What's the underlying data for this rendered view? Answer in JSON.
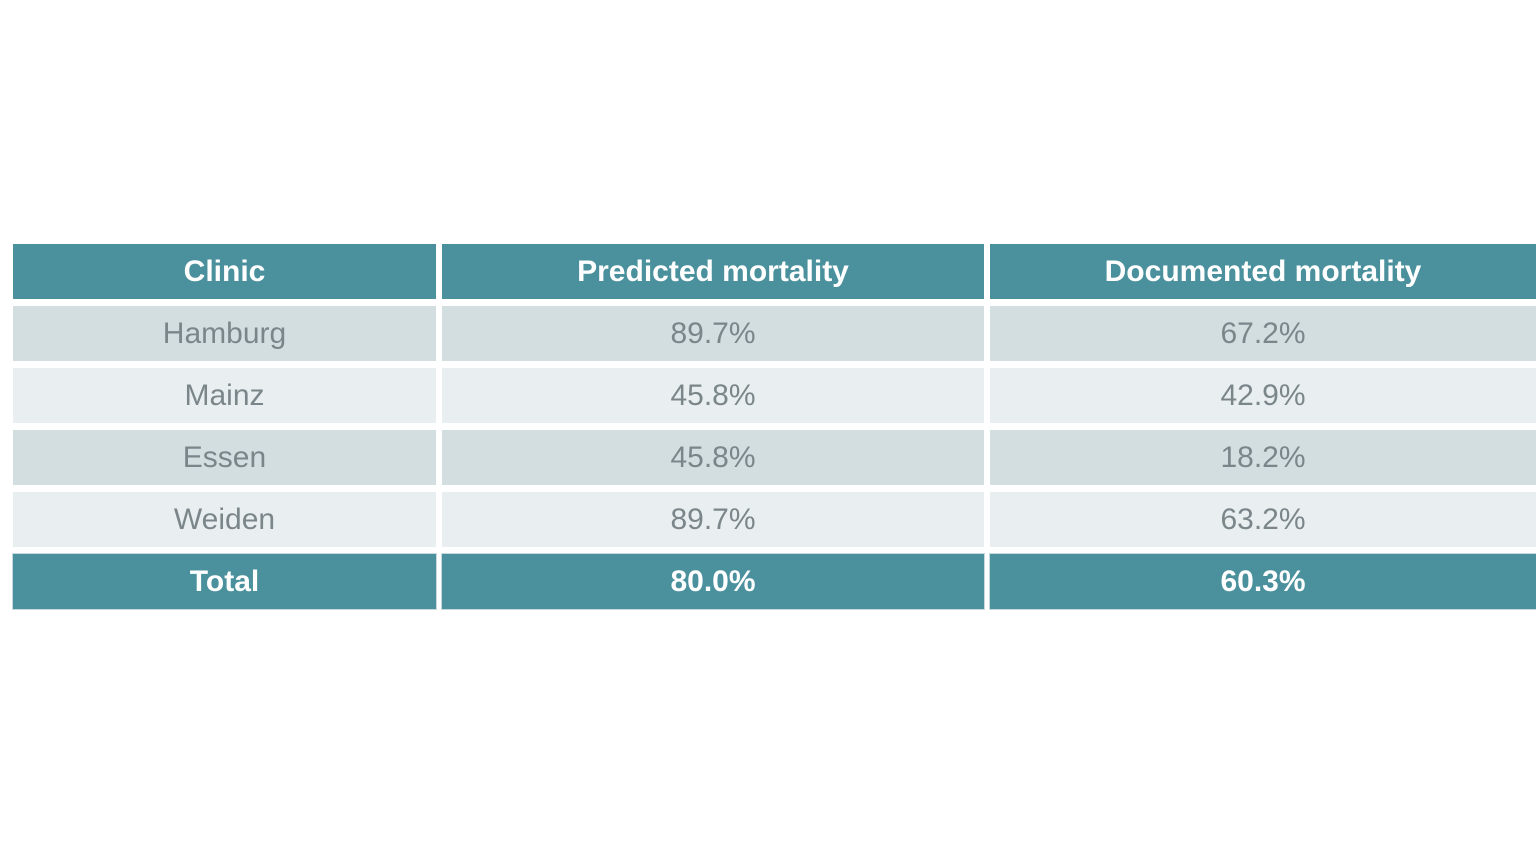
{
  "table": {
    "headers": [
      "Clinic",
      "Predicted mortality",
      "Documented mortality"
    ],
    "rows": [
      [
        "Hamburg",
        "89.7%",
        "67.2%"
      ],
      [
        "Mainz",
        "45.8%",
        "42.9%"
      ],
      [
        "Essen",
        "45.8%",
        "18.2%"
      ],
      [
        "Weiden",
        "89.7%",
        "63.2%"
      ]
    ],
    "total": [
      "Total",
      "80.0%",
      "60.3%"
    ]
  },
  "chart_data": {
    "type": "table",
    "title": "",
    "columns": [
      "Clinic",
      "Predicted mortality",
      "Documented mortality"
    ],
    "rows": [
      [
        "Hamburg",
        89.7,
        67.2
      ],
      [
        "Mainz",
        45.8,
        42.9
      ],
      [
        "Essen",
        45.8,
        18.2
      ],
      [
        "Weiden",
        89.7,
        63.2
      ],
      [
        "Total",
        80.0,
        60.3
      ]
    ],
    "value_unit": "%",
    "layout_hints": {
      "header_row": "teal background, bold white centered text",
      "total_row": "teal background, bold white centered text",
      "body_rows": "alternating light gray rows, gray centered text, white gaps between cells"
    }
  },
  "colors": {
    "accent_teal": "#4a919d",
    "row_dark": "#d3dee1",
    "row_light": "#e9eff1",
    "body_text": "#7b868b",
    "header_text": "#ffffff",
    "page_background": "#ffffff"
  }
}
